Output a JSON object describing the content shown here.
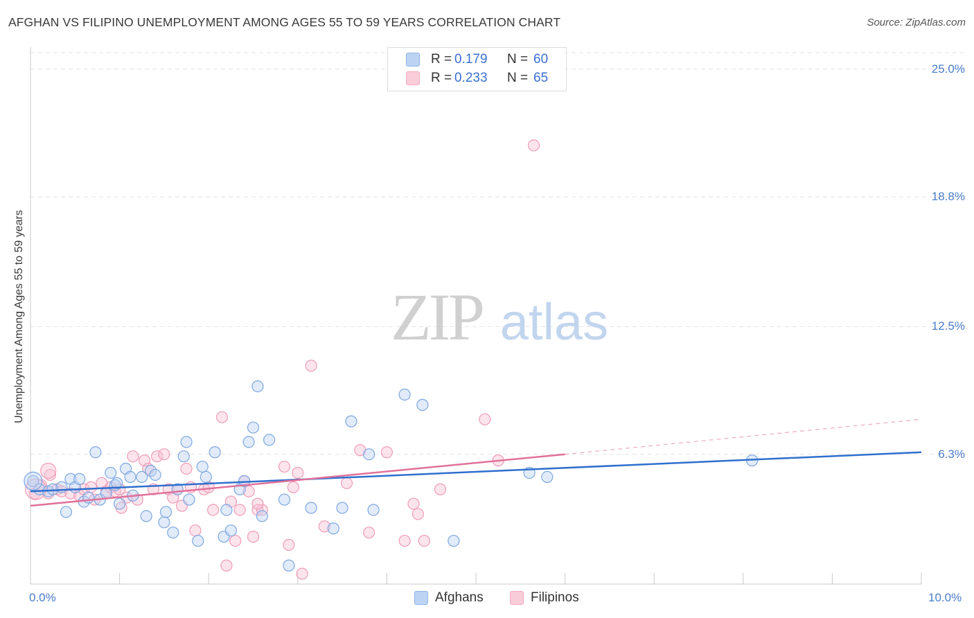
{
  "title": "AFGHAN VS FILIPINO UNEMPLOYMENT AMONG AGES 55 TO 59 YEARS CORRELATION CHART",
  "source": "Source: ZipAtlas.com",
  "watermark": {
    "zip": "ZIP",
    "atlas": "atlas"
  },
  "legend": {
    "r_label": "R =",
    "n_label": "N =",
    "rows": [
      {
        "r": "0.179",
        "n": "60"
      },
      {
        "r": "0.233",
        "n": "65"
      }
    ]
  },
  "chart_data": {
    "type": "scatter",
    "title": "AFGHAN VS FILIPINO UNEMPLOYMENT AMONG AGES 55 TO 59 YEARS CORRELATION CHART",
    "xlabel": "",
    "ylabel": "Unemployment Among Ages 55 to 59 years",
    "xlim": [
      0,
      10
    ],
    "ylim": [
      0,
      25.8
    ],
    "x_tick_labels": [
      "0.0%",
      "10.0%"
    ],
    "y_ticks": [
      6.3,
      12.5,
      18.8,
      25.0
    ],
    "y_tick_labels": [
      "6.3%",
      "12.5%",
      "18.8%",
      "25.0%"
    ],
    "grid": true,
    "legend_position": "top-center",
    "series": [
      {
        "name": "Afghans",
        "color": "#8fb4e8",
        "line_color": "#2e6fce",
        "trend": {
          "x": [
            0,
            10
          ],
          "y": [
            4.5,
            6.4
          ]
        },
        "points": [
          [
            0.03,
            5.0
          ],
          [
            0.1,
            4.6
          ],
          [
            0.2,
            4.5
          ],
          [
            0.25,
            4.6
          ],
          [
            0.35,
            4.7
          ],
          [
            0.4,
            3.5
          ],
          [
            0.45,
            5.1
          ],
          [
            0.5,
            4.7
          ],
          [
            0.55,
            5.1
          ],
          [
            0.6,
            4.0
          ],
          [
            0.65,
            4.2
          ],
          [
            0.73,
            6.4
          ],
          [
            0.78,
            4.1
          ],
          [
            0.85,
            4.4
          ],
          [
            0.9,
            5.4
          ],
          [
            0.95,
            4.8
          ],
          [
            0.97,
            4.9
          ],
          [
            1.0,
            3.9
          ],
          [
            1.07,
            5.6
          ],
          [
            1.12,
            5.2
          ],
          [
            1.15,
            4.3
          ],
          [
            1.25,
            5.2
          ],
          [
            1.3,
            3.3
          ],
          [
            1.35,
            5.5
          ],
          [
            1.4,
            5.3
          ],
          [
            1.5,
            3.0
          ],
          [
            1.52,
            3.5
          ],
          [
            1.6,
            2.5
          ],
          [
            1.65,
            4.6
          ],
          [
            1.72,
            6.2
          ],
          [
            1.75,
            6.9
          ],
          [
            1.78,
            4.1
          ],
          [
            1.88,
            2.1
          ],
          [
            1.93,
            5.7
          ],
          [
            1.97,
            5.2
          ],
          [
            2.07,
            6.4
          ],
          [
            2.17,
            2.3
          ],
          [
            2.2,
            3.6
          ],
          [
            2.25,
            2.6
          ],
          [
            2.35,
            4.6
          ],
          [
            2.4,
            5.0
          ],
          [
            2.45,
            6.9
          ],
          [
            2.5,
            7.6
          ],
          [
            2.55,
            9.6
          ],
          [
            2.6,
            3.3
          ],
          [
            2.68,
            7.0
          ],
          [
            2.85,
            4.1
          ],
          [
            2.9,
            0.9
          ],
          [
            3.15,
            3.7
          ],
          [
            3.4,
            2.7
          ],
          [
            3.5,
            3.7
          ],
          [
            3.6,
            7.9
          ],
          [
            3.8,
            6.3
          ],
          [
            3.85,
            3.6
          ],
          [
            4.2,
            9.2
          ],
          [
            4.4,
            8.7
          ],
          [
            4.75,
            2.1
          ],
          [
            5.6,
            5.4
          ],
          [
            5.8,
            5.2
          ],
          [
            8.1,
            6.0
          ]
        ]
      },
      {
        "name": "Filipinos",
        "color": "#f5a8c1",
        "line_color": "#e0719a",
        "trend": {
          "x": [
            0,
            6.0
          ],
          "y": [
            3.8,
            6.3
          ]
        },
        "trend_dashed": {
          "x": [
            6.0,
            10
          ],
          "y": [
            6.3,
            8.0
          ]
        },
        "points": [
          [
            0.05,
            4.4
          ],
          [
            0.12,
            4.8
          ],
          [
            0.2,
            4.4
          ],
          [
            0.22,
            5.3
          ],
          [
            0.3,
            4.6
          ],
          [
            0.35,
            4.5
          ],
          [
            0.45,
            4.4
          ],
          [
            0.55,
            4.3
          ],
          [
            0.6,
            4.6
          ],
          [
            0.68,
            4.7
          ],
          [
            0.72,
            4.1
          ],
          [
            0.8,
            4.9
          ],
          [
            0.85,
            4.5
          ],
          [
            0.9,
            4.7
          ],
          [
            0.95,
            4.5
          ],
          [
            1.0,
            4.6
          ],
          [
            1.02,
            3.7
          ],
          [
            1.08,
            4.2
          ],
          [
            1.15,
            6.2
          ],
          [
            1.2,
            4.1
          ],
          [
            1.28,
            6.0
          ],
          [
            1.32,
            5.6
          ],
          [
            1.38,
            4.6
          ],
          [
            1.42,
            6.2
          ],
          [
            1.5,
            6.3
          ],
          [
            1.55,
            4.6
          ],
          [
            1.6,
            4.2
          ],
          [
            1.65,
            4.6
          ],
          [
            1.7,
            3.8
          ],
          [
            1.75,
            5.6
          ],
          [
            1.8,
            4.7
          ],
          [
            1.85,
            2.6
          ],
          [
            1.95,
            4.6
          ],
          [
            2.0,
            4.7
          ],
          [
            2.05,
            3.6
          ],
          [
            2.15,
            8.1
          ],
          [
            2.2,
            0.9
          ],
          [
            2.25,
            4.0
          ],
          [
            2.3,
            2.1
          ],
          [
            2.35,
            3.6
          ],
          [
            2.4,
            5.0
          ],
          [
            2.45,
            4.5
          ],
          [
            2.5,
            2.3
          ],
          [
            2.55,
            3.6
          ],
          [
            2.6,
            3.6
          ],
          [
            2.85,
            5.7
          ],
          [
            2.9,
            1.9
          ],
          [
            2.95,
            4.7
          ],
          [
            3.0,
            5.4
          ],
          [
            3.05,
            0.5
          ],
          [
            3.15,
            10.6
          ],
          [
            3.3,
            2.8
          ],
          [
            3.55,
            4.9
          ],
          [
            3.7,
            6.5
          ],
          [
            3.8,
            2.5
          ],
          [
            4.0,
            6.4
          ],
          [
            4.2,
            2.1
          ],
          [
            4.3,
            3.9
          ],
          [
            4.35,
            3.4
          ],
          [
            4.42,
            2.1
          ],
          [
            4.6,
            4.6
          ],
          [
            5.1,
            8.0
          ],
          [
            5.25,
            6.0
          ],
          [
            5.65,
            21.3
          ],
          [
            2.55,
            3.9
          ]
        ]
      }
    ]
  }
}
